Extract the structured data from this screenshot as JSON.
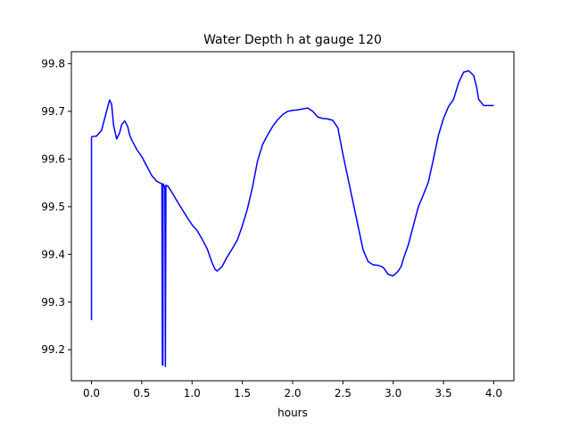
{
  "chart_data": {
    "type": "line",
    "title": "Water Depth h at gauge 120",
    "xlabel": "hours",
    "ylabel": "",
    "xlim": [
      -0.2,
      4.2
    ],
    "ylim": [
      99.135,
      99.825
    ],
    "xticks": [
      0.0,
      0.5,
      1.0,
      1.5,
      2.0,
      2.5,
      3.0,
      3.5,
      4.0
    ],
    "xtick_labels": [
      "0.0",
      "0.5",
      "1.0",
      "1.5",
      "2.0",
      "2.5",
      "3.0",
      "3.5",
      "4.0"
    ],
    "yticks": [
      99.2,
      99.3,
      99.4,
      99.5,
      99.6,
      99.7,
      99.8
    ],
    "ytick_labels": [
      "99.2",
      "99.3",
      "99.4",
      "99.5",
      "99.6",
      "99.7",
      "99.8"
    ],
    "grid": false,
    "legend": "none",
    "series": [
      {
        "color": "#0000ff",
        "x": [
          0.0,
          0.0,
          0.005,
          0.05,
          0.1,
          0.15,
          0.18,
          0.2,
          0.22,
          0.25,
          0.28,
          0.3,
          0.33,
          0.36,
          0.38,
          0.4,
          0.42,
          0.45,
          0.5,
          0.55,
          0.6,
          0.65,
          0.7,
          0.705,
          0.71,
          0.712,
          0.73,
          0.735,
          0.74,
          0.76,
          0.8,
          0.85,
          0.9,
          0.95,
          1.0,
          1.05,
          1.1,
          1.15,
          1.2,
          1.23,
          1.25,
          1.3,
          1.35,
          1.4,
          1.45,
          1.5,
          1.55,
          1.6,
          1.65,
          1.7,
          1.75,
          1.8,
          1.85,
          1.9,
          1.95,
          2.0,
          2.05,
          2.1,
          2.15,
          2.2,
          2.25,
          2.3,
          2.35,
          2.4,
          2.45,
          2.5,
          2.55,
          2.6,
          2.65,
          2.7,
          2.75,
          2.8,
          2.85,
          2.9,
          2.95,
          3.0,
          3.05,
          3.08,
          3.1,
          3.15,
          3.2,
          3.25,
          3.3,
          3.35,
          3.4,
          3.45,
          3.5,
          3.55,
          3.6,
          3.65,
          3.7,
          3.75,
          3.8,
          3.83,
          3.85,
          3.9,
          3.95,
          4.0
        ],
        "y": [
          99.262,
          99.645,
          99.647,
          99.648,
          99.66,
          99.7,
          99.724,
          99.715,
          99.67,
          99.642,
          99.655,
          99.672,
          99.68,
          99.668,
          99.65,
          99.64,
          99.632,
          99.62,
          99.605,
          99.585,
          99.565,
          99.553,
          99.548,
          99.168,
          99.168,
          99.548,
          99.54,
          99.165,
          99.545,
          99.543,
          99.53,
          99.512,
          99.495,
          99.478,
          99.462,
          99.45,
          99.432,
          99.412,
          99.382,
          99.368,
          99.365,
          99.375,
          99.395,
          99.412,
          99.43,
          99.46,
          99.495,
          99.54,
          99.595,
          99.63,
          99.65,
          99.668,
          99.682,
          99.693,
          99.7,
          99.702,
          99.703,
          99.705,
          99.707,
          99.7,
          99.688,
          99.685,
          99.684,
          99.681,
          99.665,
          99.61,
          99.56,
          99.51,
          99.46,
          99.41,
          99.385,
          99.378,
          99.377,
          99.373,
          99.358,
          99.355,
          99.365,
          99.375,
          99.39,
          99.42,
          99.46,
          99.5,
          99.525,
          99.552,
          99.6,
          99.65,
          99.685,
          99.71,
          99.725,
          99.76,
          99.782,
          99.785,
          99.775,
          99.75,
          99.725,
          99.712,
          99.712,
          99.712
        ]
      }
    ]
  }
}
